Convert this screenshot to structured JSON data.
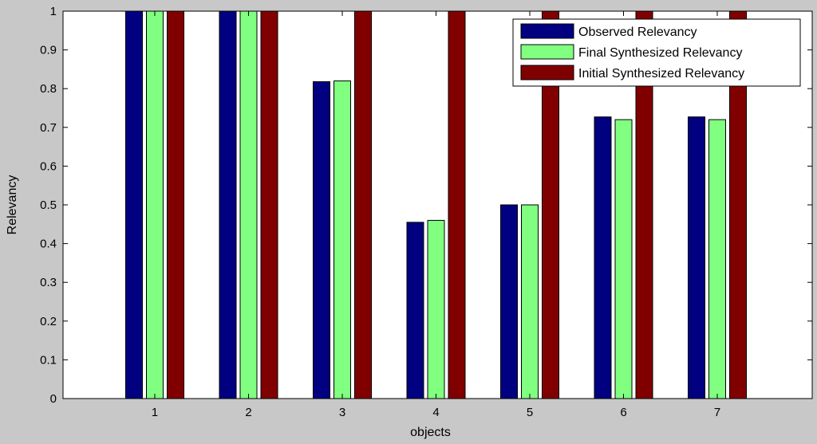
{
  "chart_data": {
    "type": "bar",
    "categories": [
      "1",
      "2",
      "3",
      "4",
      "5",
      "6",
      "7"
    ],
    "series": [
      {
        "name": "Observed Relevancy",
        "values": [
          1.0,
          1.0,
          0.818,
          0.455,
          0.5,
          0.727,
          0.727
        ],
        "color": "#000080"
      },
      {
        "name": "Final Synthesized Relevancy",
        "values": [
          1.0,
          1.0,
          0.82,
          0.46,
          0.5,
          0.72,
          0.72
        ],
        "color": "#80ff80"
      },
      {
        "name": "Initial Synthesized Relevancy",
        "values": [
          1.0,
          1.0,
          1.0,
          1.0,
          1.0,
          1.0,
          1.0
        ],
        "color": "#800000"
      }
    ],
    "xlabel": "objects",
    "ylabel": "Relevancy",
    "ylim": [
      0,
      1
    ],
    "yticks": [
      "0",
      "0.1",
      "0.2",
      "0.3",
      "0.4",
      "0.5",
      "0.6",
      "0.7",
      "0.8",
      "0.9",
      "1"
    ],
    "grid": false,
    "legend_position": "top-right",
    "background_color": "#c8c8c8",
    "plot_background_color": "#ffffff"
  }
}
